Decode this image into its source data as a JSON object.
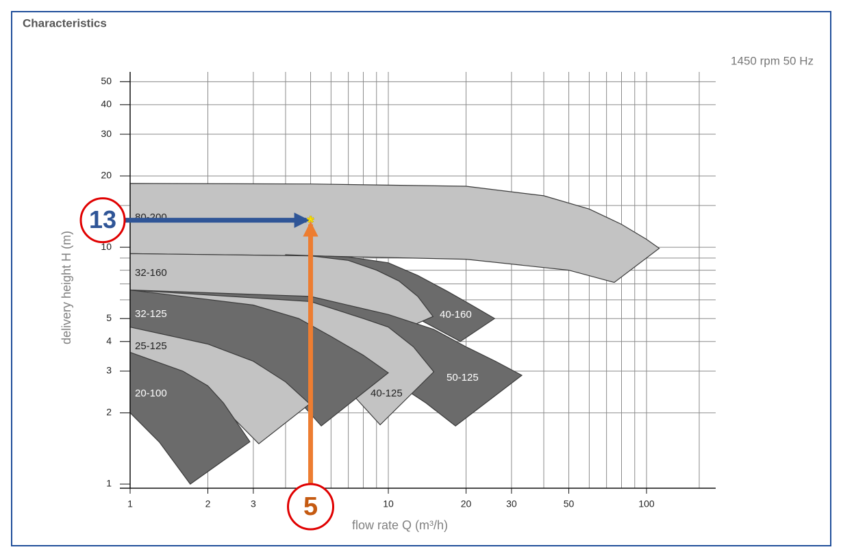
{
  "chart_data": {
    "type": "area",
    "title": "Characteristics",
    "subtitle": "1450 rpm 50 Hz",
    "xlabel": "flow rate Q (m³/h)",
    "ylabel": "delivery height H (m)",
    "log_x": true,
    "log_y": true,
    "grid": true,
    "xlim": [
      1,
      160
    ],
    "ylim": [
      1,
      55
    ],
    "xticks": [
      1,
      2,
      3,
      10,
      20,
      30,
      50,
      100
    ],
    "yticks": [
      1,
      2,
      3,
      4,
      5,
      10,
      20,
      30,
      40,
      50
    ],
    "xgrid": [
      2,
      3,
      4,
      5,
      6,
      7,
      8,
      9,
      10,
      20,
      30,
      40,
      50,
      60,
      70,
      80,
      90,
      100,
      160
    ],
    "ygrid": [
      2,
      3,
      4,
      5,
      6,
      7,
      8,
      9,
      10,
      15,
      20,
      30,
      40,
      50
    ],
    "series": [
      {
        "name": "80-200",
        "color": "#c3c3c3",
        "x": [
          1,
          5,
          20,
          40,
          60,
          80,
          100,
          112,
          75,
          50,
          20,
          5,
          1
        ],
        "y": [
          18.6,
          18.5,
          18.1,
          16.5,
          14.5,
          12.5,
          10.8,
          9.9,
          7.1,
          8.0,
          8.9,
          9.2,
          9.4
        ]
      },
      {
        "name": "40-160",
        "color": "#6b6b6b",
        "x": [
          4,
          7,
          10,
          13,
          17,
          21,
          25.8,
          19,
          13,
          8,
          4
        ],
        "y": [
          9.3,
          9.1,
          8.6,
          7.6,
          6.5,
          5.7,
          5.0,
          4.0,
          5.0,
          6.2,
          7.5
        ]
      },
      {
        "name": "32-160",
        "color": "#c3c3c3",
        "x": [
          1,
          5,
          7,
          9,
          11,
          13,
          14.9,
          12,
          8,
          5,
          1
        ],
        "y": [
          9.4,
          9.2,
          8.8,
          8.0,
          7.2,
          6.2,
          5.1,
          4.6,
          5.2,
          5.8,
          6.6
        ]
      },
      {
        "name": "50-125",
        "color": "#6b6b6b",
        "x": [
          1,
          5,
          10,
          15,
          20,
          26,
          32.9,
          18.2,
          14,
          10,
          6,
          3
        ],
        "y": [
          6.6,
          6.2,
          5.2,
          4.5,
          3.8,
          3.3,
          2.88,
          1.76,
          2.2,
          2.8,
          4.2,
          5.3
        ]
      },
      {
        "name": "40-125",
        "color": "#c3c3c3",
        "x": [
          1,
          5,
          8,
          10,
          12.5,
          15,
          9.3,
          7,
          4,
          2
        ],
        "y": [
          6.6,
          5.9,
          5.0,
          4.6,
          3.8,
          2.98,
          1.78,
          2.5,
          3.8,
          5.2
        ]
      },
      {
        "name": "32-125",
        "color": "#6b6b6b",
        "x": [
          1,
          3,
          4.5,
          6,
          8,
          10,
          5.5,
          4,
          2,
          1
        ],
        "y": [
          6.6,
          5.7,
          5.0,
          4.2,
          3.5,
          2.95,
          1.76,
          2.6,
          3.8,
          4.6
        ]
      },
      {
        "name": "25-125",
        "color": "#c3c3c3",
        "x": [
          1,
          2,
          3,
          4,
          4.96,
          3.15,
          2.2,
          1.5,
          1
        ],
        "y": [
          4.6,
          3.9,
          3.3,
          2.7,
          2.18,
          1.48,
          2.2,
          3.0,
          3.6
        ]
      },
      {
        "name": "20-100",
        "color": "#6b6b6b",
        "x": [
          1,
          1.6,
          2,
          2.3,
          2.91,
          1.71,
          1.3,
          1
        ],
        "y": [
          3.6,
          3.0,
          2.6,
          2.2,
          1.51,
          1.0,
          1.5,
          2.0
        ]
      }
    ],
    "annotation": {
      "q": 5,
      "h": 13
    }
  }
}
